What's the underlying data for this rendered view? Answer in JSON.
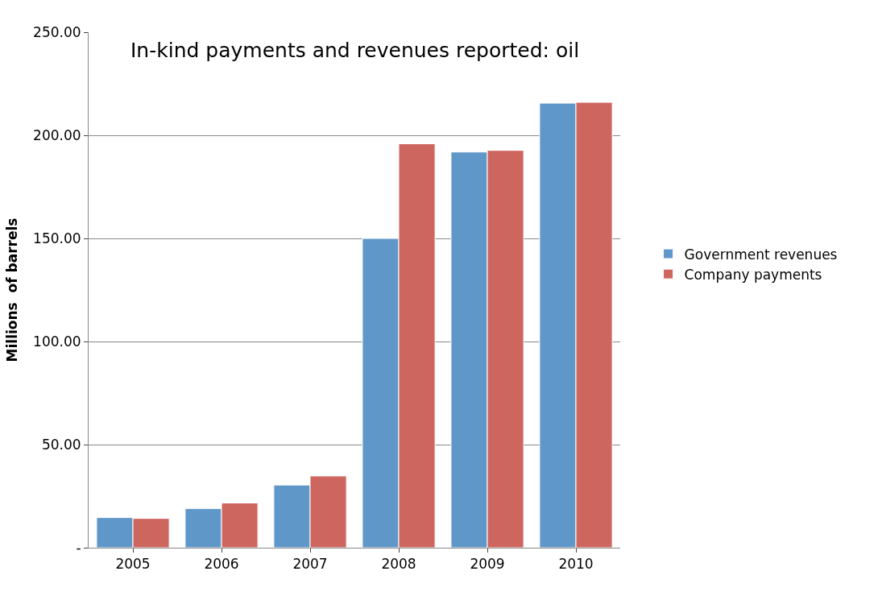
{
  "chart_data": {
    "type": "bar",
    "title": "In-kind payments and revenues reported: oil",
    "ylabel": "Millions  of barrels",
    "categories": [
      "2005",
      "2006",
      "2007",
      "2008",
      "2009",
      "2010"
    ],
    "series": [
      {
        "name": "Government revenues",
        "color": "#6097c9",
        "values": [
          14.6,
          19,
          30.4,
          150,
          191.9,
          215.6
        ]
      },
      {
        "name": "Company payments",
        "color": "#ce6660",
        "values": [
          14.2,
          21.7,
          34.8,
          195.9,
          192.7,
          216
        ]
      }
    ],
    "ylim": [
      0,
      250
    ],
    "yticks": [
      {
        "value": 0,
        "label": "-"
      },
      {
        "value": 50,
        "label": "50.00"
      },
      {
        "value": 100,
        "label": "100.00"
      },
      {
        "value": 150,
        "label": "150.00"
      },
      {
        "value": 200,
        "label": "200.00"
      },
      {
        "value": 250,
        "label": "250.00"
      }
    ],
    "grid": "y",
    "legend": "right"
  }
}
